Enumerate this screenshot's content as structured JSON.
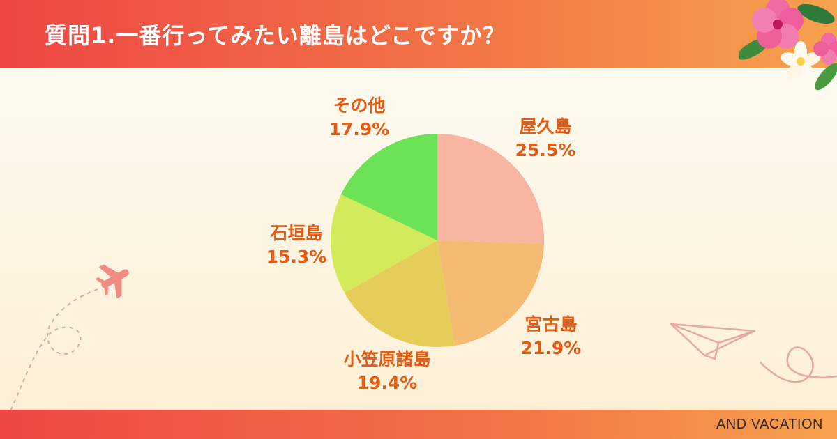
{
  "header": {
    "title": "質問1.一番行ってみたい離島はどこですか？"
  },
  "footer": {
    "brand": "AND VACATION"
  },
  "icons": [
    "hibiscus-flower-icon",
    "airplane-icon",
    "paper-plane-icon"
  ],
  "colors": {
    "header_start": "#ee4744",
    "header_end": "#f7a24e",
    "label": "#e65a12"
  },
  "chart_data": {
    "type": "pie",
    "title": "",
    "categories": [
      "屋久島",
      "宮古島",
      "小笠原諸島",
      "石垣島",
      "その他"
    ],
    "values": [
      25.5,
      21.9,
      19.4,
      15.3,
      17.9
    ],
    "value_labels": [
      "25.5%",
      "21.9%",
      "19.4%",
      "15.3%",
      "17.9%"
    ],
    "colors": [
      "#f7b5a2",
      "#f5bb72",
      "#e6cd59",
      "#d3ea5a",
      "#6ce256"
    ],
    "start": "top",
    "direction": "clockwise",
    "legend": "none"
  }
}
